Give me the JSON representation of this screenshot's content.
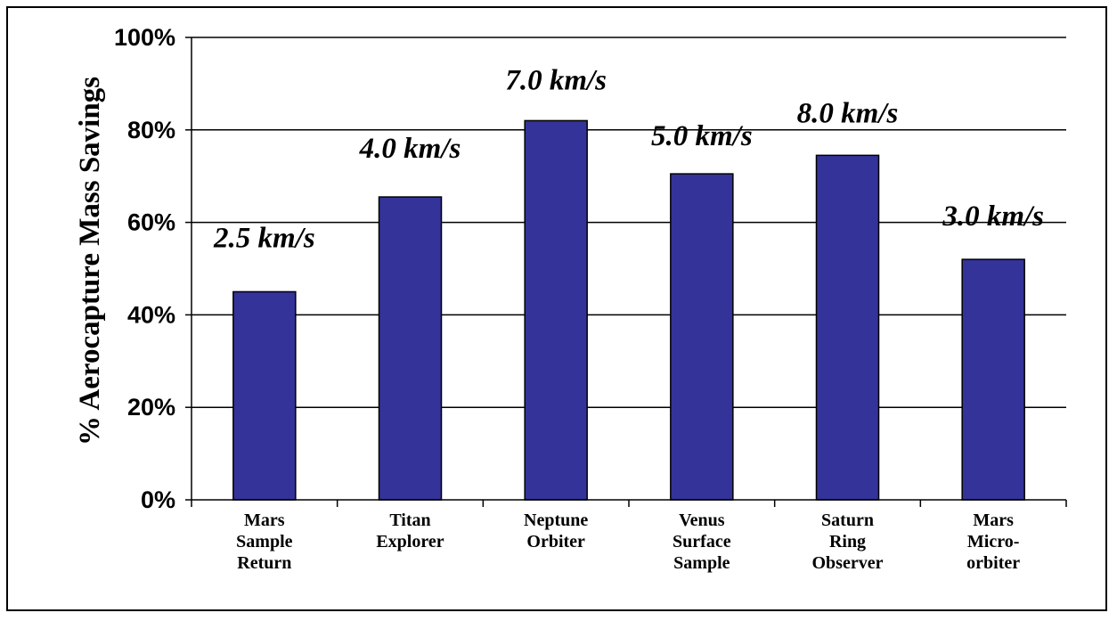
{
  "chart_data": {
    "type": "bar",
    "title": "",
    "xlabel": "",
    "ylabel": "% Aerocapture Mass Savings",
    "ylim": [
      0,
      100
    ],
    "yticks": [
      "0%",
      "20%",
      "40%",
      "60%",
      "80%",
      "100%"
    ],
    "grid": true,
    "categories": [
      [
        "Mars",
        "Sample",
        "Return"
      ],
      [
        "Titan",
        "Explorer"
      ],
      [
        "Neptune",
        "Orbiter"
      ],
      [
        "Venus",
        "Surface",
        "Sample"
      ],
      [
        "Saturn",
        "Ring",
        "Observer"
      ],
      [
        "Mars",
        "Micro-",
        "orbiter"
      ]
    ],
    "values": [
      45,
      65.5,
      82,
      70.5,
      74.5,
      52
    ],
    "data_labels": [
      "2.5 km/s",
      "4.0 km/s",
      "7.0 km/s",
      "5.0 km/s",
      "8.0 km/s",
      "3.0 km/s"
    ],
    "colors": {
      "bar": "#333399",
      "bar_edge": "#000000",
      "grid": "#000000",
      "axis": "#000000"
    }
  }
}
